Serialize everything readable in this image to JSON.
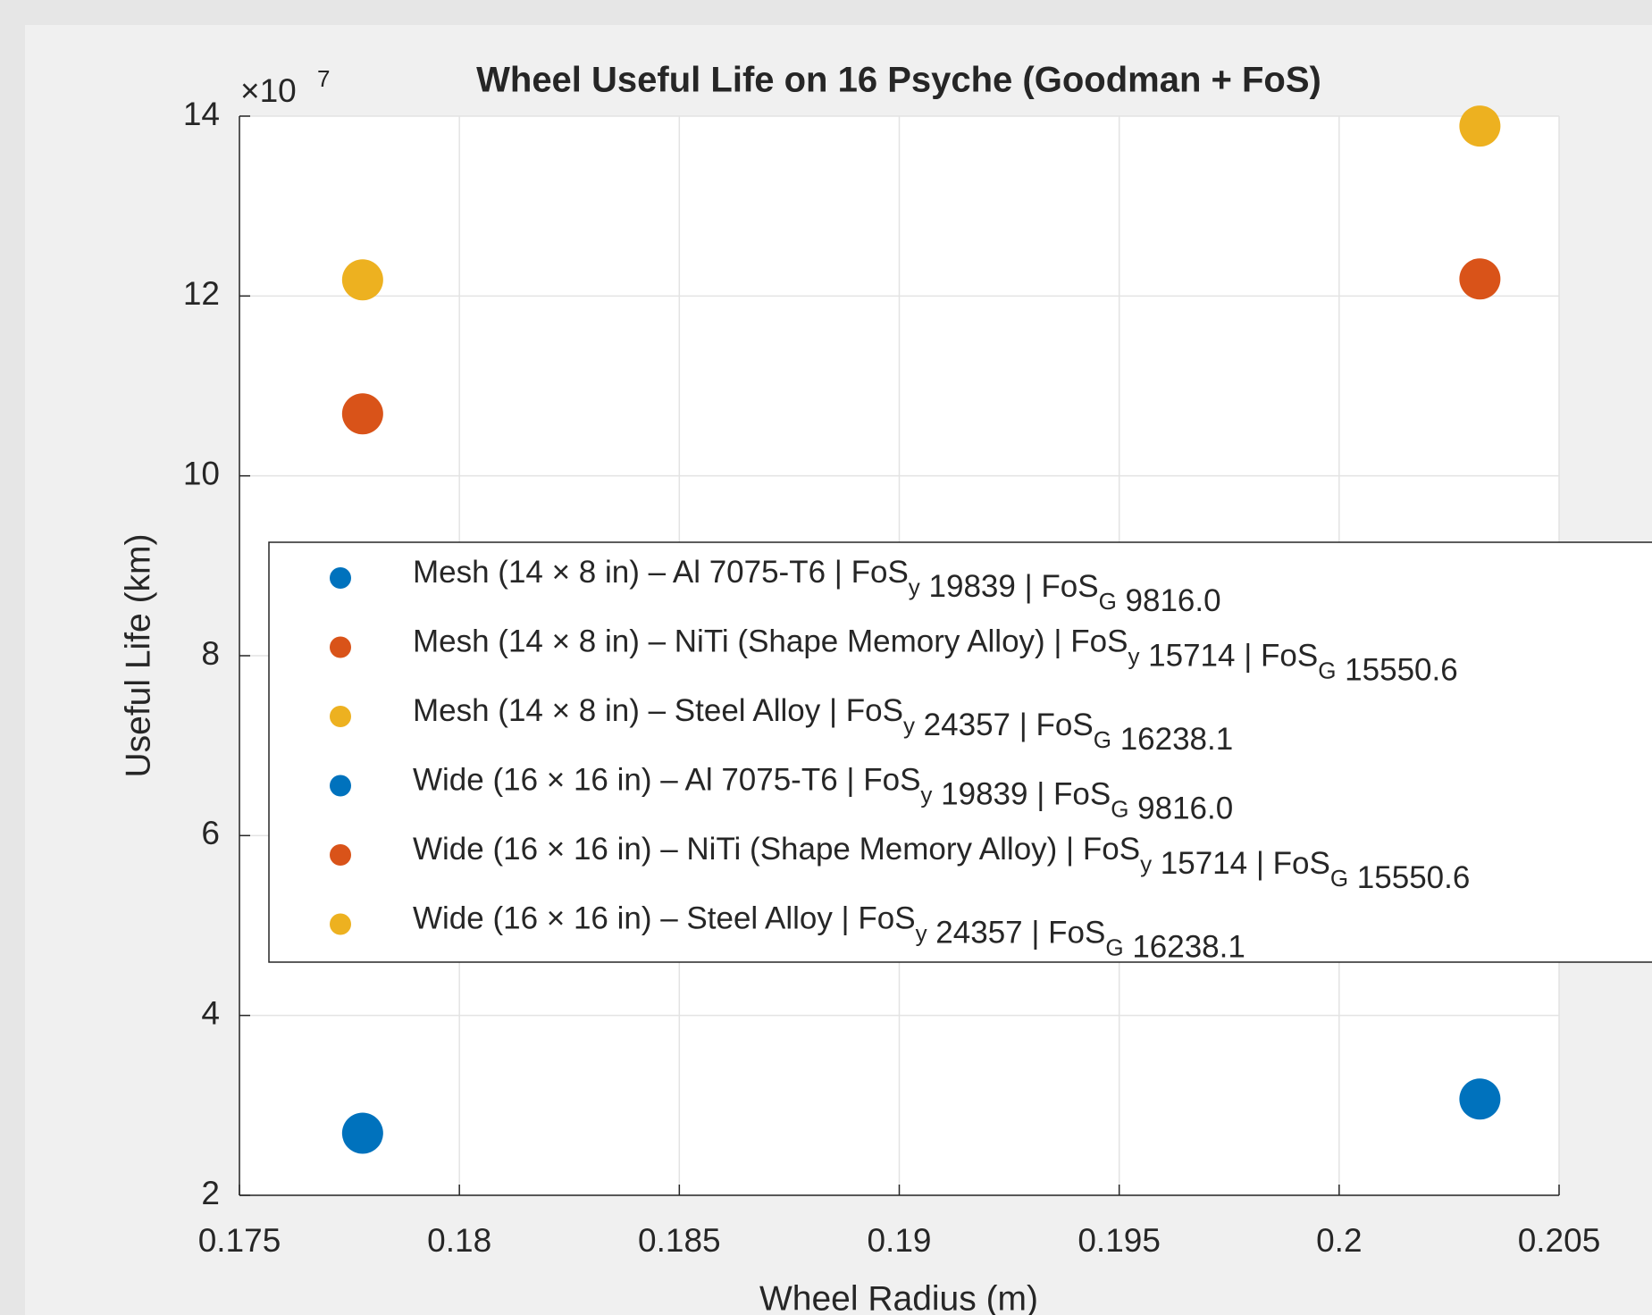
{
  "chart_data": {
    "type": "scatter",
    "title": "Wheel Useful Life on 16 Psyche (Goodman + FoS)",
    "x_label": "Wheel Radius (m)",
    "y_label": "Useful Life (km)",
    "y_multiplier": {
      "base": "×10",
      "exponent": "7"
    },
    "xlim": [
      0.175,
      0.205
    ],
    "xticks": [
      0.175,
      0.18,
      0.185,
      0.19,
      0.195,
      0.2,
      0.205
    ],
    "ylim": [
      2,
      14
    ],
    "yticks": [
      2,
      4,
      6,
      8,
      10,
      12,
      14
    ],
    "grid": true,
    "legend": "inside",
    "series": [
      {
        "name": "Mesh (14 × 8 in) – Al 7075-T6 | FoS_y 19839 | FoS_G 9816.0",
        "color": "#0072BD",
        "x": [
          0.1778
        ],
        "values": [
          2.69
        ]
      },
      {
        "name": "Mesh (14 × 8 in) – NiTi (Shape Memory Alloy) | FoS_y 15714 | FoS_G 15550.6",
        "color": "#D95319",
        "x": [
          0.1778
        ],
        "values": [
          10.69
        ]
      },
      {
        "name": "Mesh (14 × 8 in) – Steel Alloy | FoS_y 24357 | FoS_G 16238.1",
        "color": "#EDB120",
        "x": [
          0.1778
        ],
        "values": [
          12.18
        ]
      },
      {
        "name": "Wide (16 × 16 in) – Al 7075-T6 | FoS_y 19839 | FoS_G 9816.0",
        "color": "#0072BD",
        "x": [
          0.2032
        ],
        "values": [
          3.07
        ]
      },
      {
        "name": "Wide (16 × 16 in) – NiTi (Shape Memory Alloy) | FoS_y 15714 | FoS_G 15550.6",
        "color": "#D95319",
        "x": [
          0.2032
        ],
        "values": [
          12.19
        ]
      },
      {
        "name": "Wide (16 × 16 in) – Steel Alloy | FoS_y 24357 | FoS_G 16238.1",
        "color": "#EDB120",
        "x": [
          0.2032
        ],
        "values": [
          13.89
        ]
      }
    ]
  }
}
